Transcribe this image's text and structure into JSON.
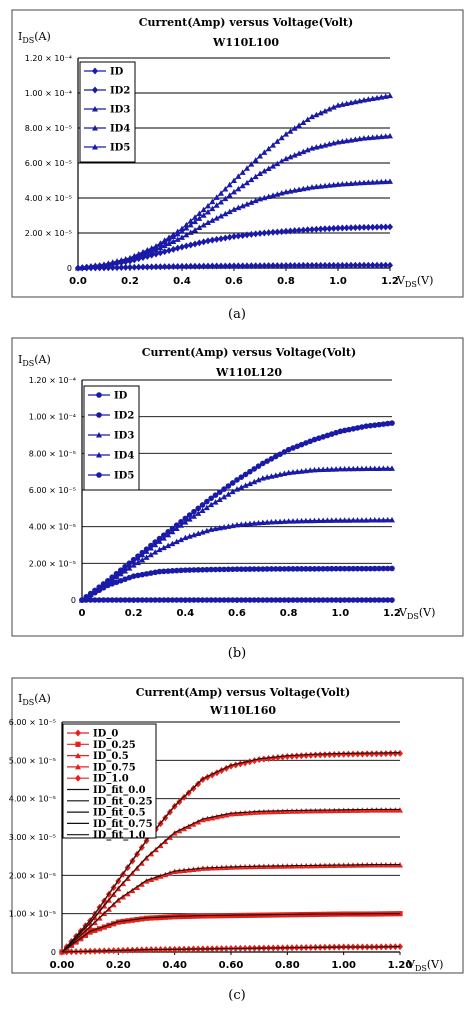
{
  "captions": [
    "(a)",
    "(b)",
    "(c)"
  ],
  "chart_data": [
    {
      "type": "line",
      "title": "Current(Amp) versus Voltage(Volt)",
      "subtitle": "W110L100",
      "ylabel_main": "I",
      "ylabel_sub": "DS",
      "ylabel_unit": "(A)",
      "xlabel_main": "V",
      "xlabel_sub": "DS",
      "xlabel_unit": "(V)",
      "xlim": [
        0,
        1.2
      ],
      "ylim": [
        0,
        0.00012
      ],
      "xticks": [
        "0.0",
        "0.2",
        "0.4",
        "0.6",
        "0.8",
        "1.0",
        "1.2"
      ],
      "yticks": [
        "0",
        "2.00 × 10⁻⁵",
        "4.00 × 10⁻⁵",
        "6.00 × 10⁻⁵",
        "8.00 × 10⁻⁵",
        "1.00 × 10⁻⁴",
        "1.20 × 10⁻⁴"
      ],
      "grid": true,
      "legend_position": "top-left",
      "marker_color": "#1a1aa8",
      "series": [
        {
          "name": "ID",
          "marker": "diamond",
          "x": [
            0,
            0.1,
            0.2,
            0.3,
            0.4,
            0.5,
            0.6,
            0.7,
            0.8,
            0.9,
            1.0,
            1.1,
            1.2
          ],
          "values": [
            0,
            1e-07,
            4e-07,
            7e-07,
            9e-07,
            1.1e-06,
            1.2e-06,
            1.3e-06,
            1.4e-06,
            1.5e-06,
            1.5e-06,
            1.6e-06,
            1.6e-06
          ]
        },
        {
          "name": "ID2",
          "marker": "diamond",
          "x": [
            0,
            0.1,
            0.2,
            0.3,
            0.4,
            0.5,
            0.6,
            0.7,
            0.8,
            0.9,
            1.0,
            1.1,
            1.2
          ],
          "values": [
            0,
            1.5e-06,
            4e-06,
            8e-06,
            1.2e-05,
            1.55e-05,
            1.8e-05,
            1.98e-05,
            2.1e-05,
            2.2e-05,
            2.28e-05,
            2.32e-05,
            2.35e-05
          ]
        },
        {
          "name": "ID3",
          "marker": "triangle",
          "x": [
            0,
            0.1,
            0.2,
            0.3,
            0.4,
            0.5,
            0.6,
            0.7,
            0.8,
            0.9,
            1.0,
            1.1,
            1.2
          ],
          "values": [
            0,
            1.8e-06,
            5e-06,
            1.05e-05,
            1.75e-05,
            2.6e-05,
            3.35e-05,
            3.95e-05,
            4.35e-05,
            4.62e-05,
            4.78e-05,
            4.88e-05,
            4.95e-05
          ]
        },
        {
          "name": "ID4",
          "marker": "triangle",
          "x": [
            0,
            0.1,
            0.2,
            0.3,
            0.4,
            0.5,
            0.6,
            0.7,
            0.8,
            0.9,
            1.0,
            1.1,
            1.2
          ],
          "values": [
            0,
            1.9e-06,
            5.5e-06,
            1.2e-05,
            2.1e-05,
            3.2e-05,
            4.35e-05,
            5.4e-05,
            6.25e-05,
            6.85e-05,
            7.2e-05,
            7.42e-05,
            7.55e-05
          ]
        },
        {
          "name": "ID5",
          "marker": "triangle",
          "x": [
            0,
            0.1,
            0.2,
            0.3,
            0.4,
            0.5,
            0.6,
            0.7,
            0.8,
            0.9,
            1.0,
            1.1,
            1.2
          ],
          "values": [
            0,
            2e-06,
            5.8e-06,
            1.25e-05,
            2.25e-05,
            3.55e-05,
            5e-05,
            6.4e-05,
            7.65e-05,
            8.65e-05,
            9.3e-05,
            9.6e-05,
            9.85e-05
          ]
        }
      ]
    },
    {
      "type": "line",
      "title": "Current(Amp) versus Voltage(Volt)",
      "subtitle": "W110L120",
      "ylabel_main": "I",
      "ylabel_sub": "DS",
      "ylabel_unit": "(A)",
      "xlabel_main": "V",
      "xlabel_sub": "DS",
      "xlabel_unit": "(V)",
      "xlim": [
        0,
        1.2
      ],
      "ylim": [
        0,
        0.00012
      ],
      "xticks": [
        "0",
        "0.2",
        "0.4",
        "0.6",
        "0.8",
        "1.0",
        "1.2"
      ],
      "yticks": [
        "0",
        "2.00 × 10⁻⁵",
        "4.00 × 10⁻⁵",
        "6.00 × 10⁻⁵",
        "8.00 × 10⁻⁵",
        "1.00 × 10⁻⁴",
        "1.20 × 10⁻⁴"
      ],
      "grid": true,
      "legend_position": "top-left",
      "marker_color": "#1a1aa8",
      "series": [
        {
          "name": "ID",
          "marker": "circle",
          "x": [
            0,
            0.1,
            0.2,
            0.3,
            0.4,
            0.5,
            0.6,
            0.7,
            0.8,
            0.9,
            1.0,
            1.1,
            1.2
          ],
          "values": [
            0,
            0,
            0,
            0,
            0,
            0,
            0,
            0,
            0,
            0,
            0,
            0,
            0
          ]
        },
        {
          "name": "ID2",
          "marker": "circle",
          "x": [
            0,
            0.1,
            0.2,
            0.3,
            0.4,
            0.5,
            0.6,
            0.7,
            0.8,
            0.9,
            1.0,
            1.1,
            1.2
          ],
          "values": [
            0,
            8e-06,
            1.3e-05,
            1.55e-05,
            1.63e-05,
            1.66e-05,
            1.68e-05,
            1.69e-05,
            1.7e-05,
            1.7e-05,
            1.71e-05,
            1.71e-05,
            1.72e-05
          ]
        },
        {
          "name": "ID3",
          "marker": "triangle",
          "x": [
            0,
            0.1,
            0.2,
            0.3,
            0.4,
            0.5,
            0.6,
            0.7,
            0.8,
            0.9,
            1.0,
            1.1,
            1.2
          ],
          "values": [
            0,
            9.5e-06,
            1.9e-05,
            2.75e-05,
            3.4e-05,
            3.85e-05,
            4.1e-05,
            4.23e-05,
            4.3e-05,
            4.33e-05,
            4.35e-05,
            4.36e-05,
            4.37e-05
          ]
        },
        {
          "name": "ID4",
          "marker": "triangle",
          "x": [
            0,
            0.1,
            0.2,
            0.3,
            0.4,
            0.5,
            0.6,
            0.7,
            0.8,
            0.9,
            1.0,
            1.1,
            1.2
          ],
          "values": [
            0,
            1e-05,
            2.1e-05,
            3.2e-05,
            4.25e-05,
            5.2e-05,
            6.05e-05,
            6.65e-05,
            6.95e-05,
            7.1e-05,
            7.15e-05,
            7.17e-05,
            7.18e-05
          ]
        },
        {
          "name": "ID5",
          "marker": "circle",
          "x": [
            0,
            0.1,
            0.2,
            0.3,
            0.4,
            0.5,
            0.6,
            0.7,
            0.8,
            0.9,
            1.0,
            1.1,
            1.2
          ],
          "values": [
            0,
            1.05e-05,
            2.2e-05,
            3.35e-05,
            4.45e-05,
            5.55e-05,
            6.55e-05,
            7.45e-05,
            8.2e-05,
            8.75e-05,
            9.2e-05,
            9.48e-05,
            9.65e-05
          ]
        }
      ]
    },
    {
      "type": "line",
      "title": "Current(Amp) versus Voltage(Volt)",
      "subtitle": "W110L160",
      "ylabel_main": "I",
      "ylabel_sub": "DS",
      "ylabel_unit": "(A)",
      "xlabel_main": "V",
      "xlabel_sub": "DS",
      "xlabel_unit": "(V)",
      "xlim": [
        0,
        1.2
      ],
      "ylim": [
        0,
        6e-05
      ],
      "xticks": [
        "0.00",
        "0.20",
        "0.40",
        "0.60",
        "0.80",
        "1.00",
        "1.20"
      ],
      "yticks": [
        "0",
        "1.00 × 10⁻⁵",
        "2.00 × 10⁻⁵",
        "3.00 × 10⁻⁵",
        "4.00 × 10⁻⁵",
        "5.00 × 10⁻⁵",
        "6.00 × 10⁻⁵"
      ],
      "grid": true,
      "legend_position": "top-left",
      "measured_color": "#e8201a",
      "fit_color": "#111111",
      "series": [
        {
          "name": "ID_0",
          "marker": "diamond",
          "kind": "measured",
          "x": [
            0,
            0.1,
            0.2,
            0.3,
            0.4,
            0.5,
            0.6,
            0.7,
            0.8,
            0.9,
            1.0,
            1.1,
            1.2
          ],
          "values": [
            0,
            2e-07,
            4e-07,
            6e-07,
            7e-07,
            8e-07,
            9e-07,
            1e-06,
            1.1e-06,
            1.2e-06,
            1.3e-06,
            1.3e-06,
            1.4e-06
          ]
        },
        {
          "name": "ID_0.25",
          "marker": "square",
          "kind": "measured",
          "x": [
            0,
            0.1,
            0.2,
            0.3,
            0.4,
            0.5,
            0.6,
            0.7,
            0.8,
            0.9,
            1.0,
            1.1,
            1.2
          ],
          "values": [
            0,
            5.2e-06,
            7.8e-06,
            8.8e-06,
            9.2e-06,
            9.4e-06,
            9.5e-06,
            9.6e-06,
            9.7e-06,
            9.8e-06,
            9.9e-06,
            9.9e-06,
            1e-05
          ]
        },
        {
          "name": "ID_0.5",
          "marker": "triangle",
          "kind": "measured",
          "x": [
            0,
            0.1,
            0.2,
            0.3,
            0.4,
            0.5,
            0.6,
            0.7,
            0.8,
            0.9,
            1.0,
            1.1,
            1.2
          ],
          "values": [
            0,
            6.5e-06,
            1.35e-05,
            1.85e-05,
            2.1e-05,
            2.18e-05,
            2.21e-05,
            2.23e-05,
            2.24e-05,
            2.25e-05,
            2.26e-05,
            2.27e-05,
            2.27e-05
          ]
        },
        {
          "name": "ID_0.75",
          "marker": "triangle",
          "kind": "measured",
          "x": [
            0,
            0.1,
            0.2,
            0.3,
            0.4,
            0.5,
            0.6,
            0.7,
            0.8,
            0.9,
            1.0,
            1.1,
            1.2
          ],
          "values": [
            0,
            7.5e-06,
            1.65e-05,
            2.45e-05,
            3.1e-05,
            3.45e-05,
            3.6e-05,
            3.65e-05,
            3.67e-05,
            3.68e-05,
            3.69e-05,
            3.7e-05,
            3.7e-05
          ]
        },
        {
          "name": "ID_1.0",
          "marker": "diamond",
          "kind": "measured",
          "x": [
            0,
            0.1,
            0.2,
            0.3,
            0.4,
            0.5,
            0.6,
            0.7,
            0.8,
            0.9,
            1.0,
            1.1,
            1.2
          ],
          "values": [
            0,
            8.2e-06,
            1.85e-05,
            2.9e-05,
            3.8e-05,
            4.5e-05,
            4.85e-05,
            5.02e-05,
            5.1e-05,
            5.14e-05,
            5.16e-05,
            5.17e-05,
            5.18e-05
          ]
        },
        {
          "name": "ID_fit_0.0",
          "marker": "tick",
          "kind": "fit",
          "x": [
            0,
            0.1,
            0.2,
            0.3,
            0.4,
            0.5,
            0.6,
            0.7,
            0.8,
            0.9,
            1.0,
            1.1,
            1.2
          ],
          "values": [
            0,
            2e-07,
            4e-07,
            6e-07,
            7e-07,
            8e-07,
            9e-07,
            1e-06,
            1.1e-06,
            1.2e-06,
            1.3e-06,
            1.3e-06,
            1.4e-06
          ]
        },
        {
          "name": "ID_fit_0.25",
          "marker": "tick",
          "kind": "fit",
          "x": [
            0,
            0.1,
            0.2,
            0.3,
            0.4,
            0.5,
            0.6,
            0.7,
            0.8,
            0.9,
            1.0,
            1.1,
            1.2
          ],
          "values": [
            0,
            5.4e-06,
            7.9e-06,
            8.9e-06,
            9.3e-06,
            9.5e-06,
            9.6e-06,
            9.7e-06,
            9.8e-06,
            9.9e-06,
            9.9e-06,
            1e-05,
            1e-05
          ]
        },
        {
          "name": "ID_fit_0.5",
          "marker": "tick",
          "kind": "fit",
          "x": [
            0,
            0.1,
            0.2,
            0.3,
            0.4,
            0.5,
            0.6,
            0.7,
            0.8,
            0.9,
            1.0,
            1.1,
            1.2
          ],
          "values": [
            0,
            6.6e-06,
            1.37e-05,
            1.87e-05,
            2.11e-05,
            2.19e-05,
            2.22e-05,
            2.24e-05,
            2.25e-05,
            2.26e-05,
            2.27e-05,
            2.28e-05,
            2.28e-05
          ]
        },
        {
          "name": "ID_fit_0.75",
          "marker": "tick",
          "kind": "fit",
          "x": [
            0,
            0.1,
            0.2,
            0.3,
            0.4,
            0.5,
            0.6,
            0.7,
            0.8,
            0.9,
            1.0,
            1.1,
            1.2
          ],
          "values": [
            0,
            7.6e-06,
            1.67e-05,
            2.47e-05,
            3.12e-05,
            3.47e-05,
            3.62e-05,
            3.67e-05,
            3.69e-05,
            3.7e-05,
            3.71e-05,
            3.72e-05,
            3.72e-05
          ]
        },
        {
          "name": "ID_fit_1.0",
          "marker": "tick",
          "kind": "fit",
          "x": [
            0,
            0.1,
            0.2,
            0.3,
            0.4,
            0.5,
            0.6,
            0.7,
            0.8,
            0.9,
            1.0,
            1.1,
            1.2
          ],
          "values": [
            0,
            8.3e-06,
            1.87e-05,
            2.92e-05,
            3.82e-05,
            4.52e-05,
            4.87e-05,
            5.04e-05,
            5.12e-05,
            5.16e-05,
            5.18e-05,
            5.19e-05,
            5.2e-05
          ]
        }
      ]
    }
  ]
}
